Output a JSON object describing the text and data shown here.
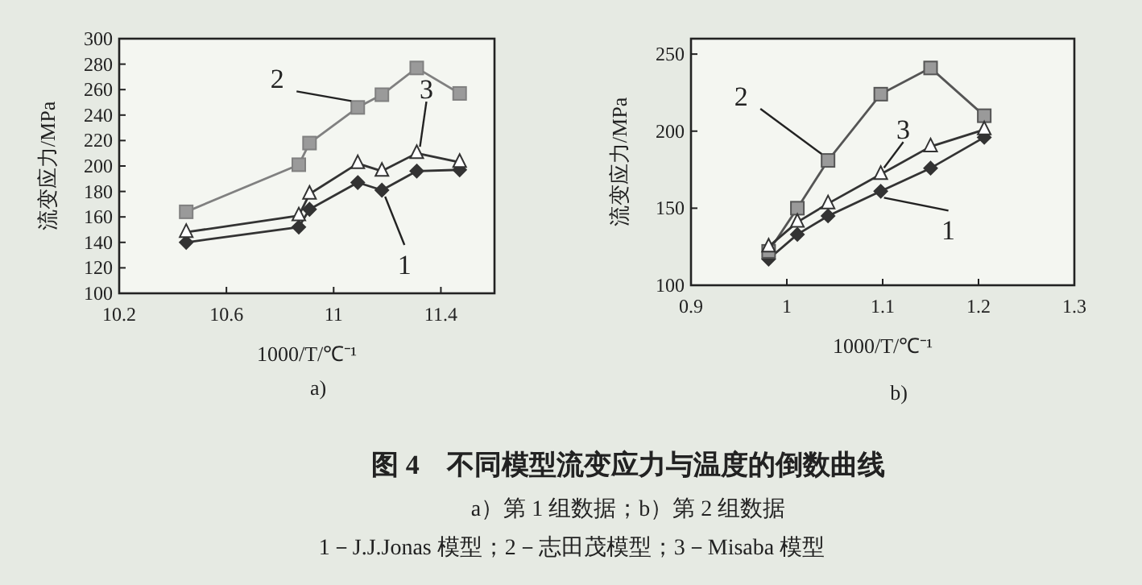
{
  "chart_data": [
    {
      "type": "line",
      "xlabel": "1000/T/℃⁻¹",
      "ylabel": "流变应力/MPa",
      "xlim": [
        10.2,
        11.6
      ],
      "xticks": [
        {
          "value": 10.2,
          "label": "10.2"
        },
        {
          "value": 10.6,
          "label": "10.6"
        },
        {
          "value": 11,
          "label": "11"
        },
        {
          "value": 11.4,
          "label": "11.4"
        }
      ],
      "ylim": [
        100,
        300
      ],
      "yticks": [
        100,
        120,
        140,
        160,
        180,
        200,
        220,
        240,
        260,
        280,
        300
      ],
      "grid": false,
      "annotations": [
        "a)"
      ],
      "series": [
        {
          "name": "1",
          "color": "#333333",
          "marker": "diamond",
          "x": [
            10.45,
            10.87,
            10.91,
            11.09,
            11.18,
            11.31,
            11.47
          ],
          "values": [
            140,
            152,
            166,
            187,
            181,
            196,
            197
          ]
        },
        {
          "name": "2",
          "color": "#808080",
          "marker": "square",
          "x": [
            10.45,
            10.87,
            10.91,
            11.09,
            11.18,
            11.31,
            11.47
          ],
          "values": [
            164,
            201,
            218,
            246,
            256,
            277,
            257
          ]
        },
        {
          "name": "3",
          "color": "#333333",
          "marker": "triangle",
          "x": [
            10.45,
            10.87,
            10.91,
            11.09,
            11.18,
            11.31,
            11.47
          ],
          "values": [
            148,
            161,
            178,
            202,
            196,
            210,
            203
          ]
        }
      ]
    },
    {
      "type": "line",
      "xlabel": "1000/T/℃⁻¹",
      "ylabel": "流变应力/MPa",
      "xlim": [
        0.9,
        1.3
      ],
      "xticks": [
        {
          "value": 0.9,
          "label": "0.9"
        },
        {
          "value": 1,
          "label": "1"
        },
        {
          "value": 1.1,
          "label": "1.1"
        },
        {
          "value": 1.2,
          "label": "1.2"
        },
        {
          "value": 1.3,
          "label": "1.3"
        }
      ],
      "ylim": [
        100,
        260
      ],
      "yticks": [
        100,
        150,
        200,
        250
      ],
      "grid": false,
      "annotations": [
        "b)"
      ],
      "series": [
        {
          "name": "1",
          "color": "#333333",
          "marker": "diamond",
          "x": [
            0.981,
            1.011,
            1.043,
            1.098,
            1.15,
            1.206
          ],
          "values": [
            117,
            133,
            145,
            161,
            176,
            196
          ]
        },
        {
          "name": "2",
          "color": "#555555",
          "marker": "square",
          "x": [
            0.981,
            1.011,
            1.043,
            1.098,
            1.15,
            1.206
          ],
          "values": [
            122,
            150,
            181,
            224,
            241,
            210
          ]
        },
        {
          "name": "3",
          "color": "#333333",
          "marker": "triangle",
          "x": [
            0.981,
            1.011,
            1.043,
            1.098,
            1.15,
            1.206
          ],
          "values": [
            125,
            141,
            153,
            172,
            190,
            201
          ]
        }
      ]
    },
    {
      "type": "other",
      "title": "图 4　不同模型流变应力与温度的倒数曲线",
      "annotations": [
        "a）第 1 组数据；b）第 2 组数据",
        "1－J.J.Jonas 模型；2－志田茂模型；3－Misaba 模型"
      ]
    }
  ]
}
